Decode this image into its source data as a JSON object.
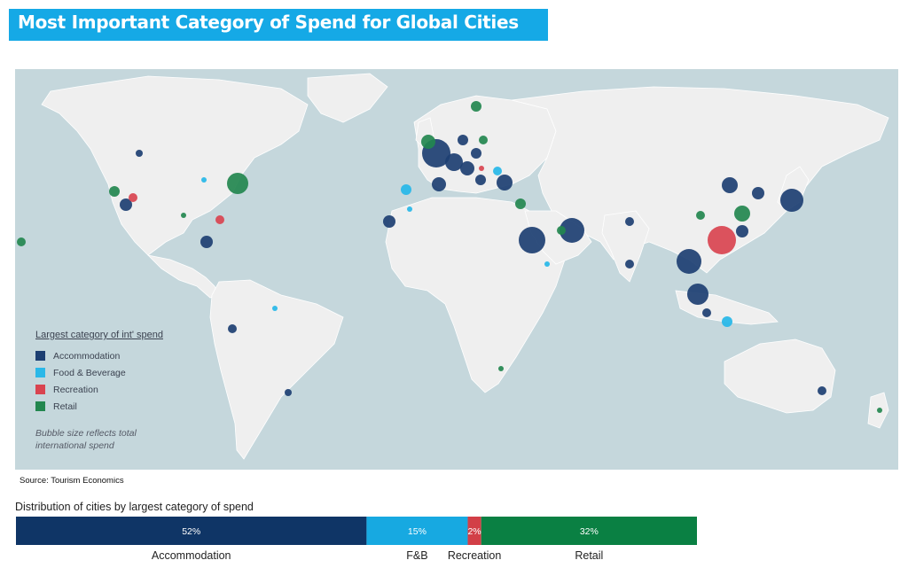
{
  "title": "Most Important Category of Spend for Global Cities",
  "source": "Source: Tourism Economics",
  "legend": {
    "title": "Largest category of int' spend",
    "note": "Bubble size reflects total international spend",
    "items": [
      {
        "label": "Accommodation",
        "color": "#1d3f72"
      },
      {
        "label": "Food & Beverage",
        "color": "#2bb8e8"
      },
      {
        "label": "Recreation",
        "color": "#d94450"
      },
      {
        "label": "Retail",
        "color": "#23874f"
      }
    ]
  },
  "chart_data": [
    {
      "type": "scatter",
      "title": "Most Important Category of Spend for Global Cities",
      "description": "Bubble map of global cities, colored by largest category of international spend",
      "series": [
        "Accommodation",
        "Food & Beverage",
        "Recreation",
        "Retail"
      ],
      "legend_position": "bottom-left"
    },
    {
      "type": "bar",
      "title": "Distribution of cities by largest category of spend",
      "categories": [
        "Accommodation",
        "F&B",
        "Recreation",
        "Retail"
      ],
      "values": [
        52,
        15,
        2,
        32
      ],
      "value_labels": [
        "52%",
        "15%",
        "2%",
        "32%"
      ],
      "colors": [
        "#0f3566",
        "#17a9e1",
        "#d23f47",
        "#0a8043"
      ],
      "stacked": true,
      "orientation": "horizontal"
    }
  ]
}
